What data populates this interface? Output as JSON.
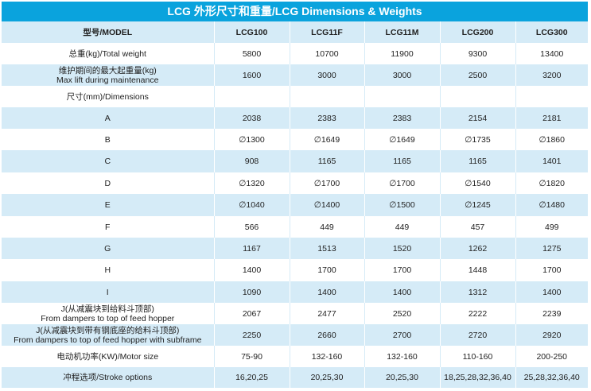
{
  "title": "LCG 外形尺寸和重量/LCG Dimensions & Weights",
  "header": [
    "型号/MODEL",
    "LCG100",
    "LCG11F",
    "LCG11M",
    "LCG200",
    "LCG300"
  ],
  "rows": [
    {
      "label": "总重(kg)/Total weight",
      "label2": "",
      "values": [
        "5800",
        "10700",
        "11900",
        "9300",
        "13400"
      ]
    },
    {
      "label": "维护期间的最大起重量(kg)",
      "label2": "Max lift during maintenance",
      "values": [
        "1600",
        "3000",
        "3000",
        "2500",
        "3200"
      ]
    },
    {
      "label": "尺寸(mm)/Dimensions",
      "label2": "",
      "values": [
        "",
        "",
        "",
        "",
        ""
      ]
    },
    {
      "label": "A",
      "label2": "",
      "values": [
        "2038",
        "2383",
        "2383",
        "2154",
        "2181"
      ]
    },
    {
      "label": "B",
      "label2": "",
      "values": [
        "∅1300",
        "∅1649",
        "∅1649",
        "∅1735",
        "∅1860"
      ]
    },
    {
      "label": "C",
      "label2": "",
      "values": [
        "908",
        "1165",
        "1165",
        "1165",
        "1401"
      ]
    },
    {
      "label": "D",
      "label2": "",
      "values": [
        "∅1320",
        "∅1700",
        "∅1700",
        "∅1540",
        "∅1820"
      ]
    },
    {
      "label": "E",
      "label2": "",
      "values": [
        "∅1040",
        "∅1400",
        "∅1500",
        "∅1245",
        "∅1480"
      ]
    },
    {
      "label": "F",
      "label2": "",
      "values": [
        "566",
        "449",
        "449",
        "457",
        "499"
      ]
    },
    {
      "label": "G",
      "label2": "",
      "values": [
        "1167",
        "1513",
        "1520",
        "1262",
        "1275"
      ]
    },
    {
      "label": "H",
      "label2": "",
      "values": [
        "1400",
        "1700",
        "1700",
        "1448",
        "1700"
      ]
    },
    {
      "label": "I",
      "label2": "",
      "values": [
        "1090",
        "1400",
        "1400",
        "1312",
        "1400"
      ]
    },
    {
      "label": "J(从减震块到给料斗顶部)",
      "label2": "From dampers to top of feed hopper",
      "values": [
        "2067",
        "2477",
        "2520",
        "2222",
        "2239"
      ]
    },
    {
      "label": "J(从减震块到带有钢底座的给料斗顶部)",
      "label2": "From dampers to top of feed hopper with subframe",
      "values": [
        "2250",
        "2660",
        "2700",
        "2720",
        "2920"
      ]
    },
    {
      "label": "电动机功率(KW)/Motor size",
      "label2": "",
      "values": [
        "75-90",
        "132-160",
        "132-160",
        "110-160",
        "200-250"
      ]
    },
    {
      "label": "冲程选项/Stroke options",
      "label2": "",
      "values": [
        "16,20,25",
        "20,25,30",
        "20,25,30",
        "18,25,28,32,36,40",
        "25,28,32,36,40"
      ]
    }
  ]
}
